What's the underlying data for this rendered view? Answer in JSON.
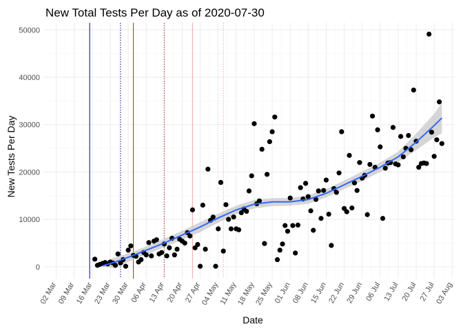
{
  "chart_data": {
    "type": "scatter",
    "title": "New Total Tests Per Day as of 2020-07-30",
    "xlabel": "Date",
    "ylabel": "New Tests Per Day",
    "year": 2020,
    "xlim": [
      "2020-02-26",
      "2020-08-04"
    ],
    "ylim": [
      -2500,
      51500
    ],
    "x_ticks": [
      "02 Mar",
      "09 Mar",
      "16 Mar",
      "23 Mar",
      "30 Mar",
      "06 Apr",
      "13 Apr",
      "20 Apr",
      "27 Apr",
      "04 May",
      "11 May",
      "18 May",
      "25 May",
      "01 Jun",
      "08 Jun",
      "15 Jun",
      "22 Jun",
      "29 Jun",
      "06 Jul",
      "13 Jul",
      "20 Jul",
      "27 Jul",
      "03 Aug"
    ],
    "y_ticks": [
      "0",
      "10000",
      "20000",
      "30000",
      "40000",
      "50000"
    ],
    "grid": true,
    "vlines": [
      {
        "date": "2020-03-15",
        "color": "#00008b",
        "style": "solid"
      },
      {
        "date": "2020-03-27",
        "color": "#00008b",
        "style": "dotted"
      },
      {
        "date": "2020-04-01",
        "color": "#b22222",
        "style": "solid"
      },
      {
        "date": "2020-04-13",
        "color": "#b22222",
        "style": "dotted"
      },
      {
        "date": "2020-04-24",
        "color": "#f4a6a6",
        "style": "solid"
      },
      {
        "date": "2020-05-06",
        "color": "#f4a6a6",
        "style": "dotted"
      }
    ],
    "points_color": "#000000",
    "smooth_color": "#3366ff",
    "ribbon_color": "#cccccc",
    "series": [
      {
        "values": [
          [
            "2020-03-17",
            1600
          ],
          [
            "2020-03-18",
            300
          ],
          [
            "2020-03-19",
            500
          ],
          [
            "2020-03-20",
            700
          ],
          [
            "2020-03-21",
            900
          ],
          [
            "2020-03-22",
            600
          ],
          [
            "2020-03-23",
            1000
          ],
          [
            "2020-03-24",
            800
          ],
          [
            "2020-03-25",
            300
          ],
          [
            "2020-03-26",
            2700
          ],
          [
            "2020-03-27",
            800
          ],
          [
            "2020-03-28",
            1500
          ],
          [
            "2020-03-29",
            100
          ],
          [
            "2020-03-30",
            3500
          ],
          [
            "2020-03-31",
            4400
          ],
          [
            "2020-04-01",
            2400
          ],
          [
            "2020-04-02",
            2200
          ],
          [
            "2020-04-03",
            1000
          ],
          [
            "2020-04-04",
            1500
          ],
          [
            "2020-04-05",
            3000
          ],
          [
            "2020-04-06",
            2500
          ],
          [
            "2020-04-07",
            5100
          ],
          [
            "2020-04-08",
            2300
          ],
          [
            "2020-04-09",
            5400
          ],
          [
            "2020-04-10",
            5700
          ],
          [
            "2020-04-11",
            2700
          ],
          [
            "2020-04-12",
            3000
          ],
          [
            "2020-04-13",
            4800
          ],
          [
            "2020-04-14",
            2300
          ],
          [
            "2020-04-15",
            4000
          ],
          [
            "2020-04-16",
            6000
          ],
          [
            "2020-04-17",
            2500
          ],
          [
            "2020-04-18",
            3700
          ],
          [
            "2020-04-19",
            5800
          ],
          [
            "2020-04-20",
            5400
          ],
          [
            "2020-04-21",
            5000
          ],
          [
            "2020-04-22",
            7200
          ],
          [
            "2020-04-23",
            6500
          ],
          [
            "2020-04-24",
            12000
          ],
          [
            "2020-04-25",
            4000
          ],
          [
            "2020-04-26",
            4700
          ],
          [
            "2020-04-27",
            100
          ],
          [
            "2020-04-28",
            13000
          ],
          [
            "2020-04-29",
            3700
          ],
          [
            "2020-04-30",
            20600
          ],
          [
            "2020-05-01",
            9800
          ],
          [
            "2020-05-02",
            10500
          ],
          [
            "2020-05-03",
            100
          ],
          [
            "2020-05-04",
            8000
          ],
          [
            "2020-05-05",
            17800
          ],
          [
            "2020-05-06",
            3300
          ],
          [
            "2020-05-07",
            13100
          ],
          [
            "2020-05-08",
            10000
          ],
          [
            "2020-05-09",
            8000
          ],
          [
            "2020-05-10",
            10500
          ],
          [
            "2020-05-11",
            8000
          ],
          [
            "2020-05-12",
            7800
          ],
          [
            "2020-05-13",
            11400
          ],
          [
            "2020-05-14",
            12200
          ],
          [
            "2020-05-15",
            11700
          ],
          [
            "2020-05-16",
            16000
          ],
          [
            "2020-05-17",
            19200
          ],
          [
            "2020-05-18",
            30200
          ],
          [
            "2020-05-19",
            13300
          ],
          [
            "2020-05-20",
            13900
          ],
          [
            "2020-05-21",
            24800
          ],
          [
            "2020-05-22",
            4900
          ],
          [
            "2020-05-23",
            19500
          ],
          [
            "2020-05-24",
            26400
          ],
          [
            "2020-05-25",
            28500
          ],
          [
            "2020-05-26",
            31600
          ],
          [
            "2020-05-27",
            1500
          ],
          [
            "2020-05-28",
            3500
          ],
          [
            "2020-05-29",
            4800
          ],
          [
            "2020-05-30",
            8700
          ],
          [
            "2020-05-31",
            7500
          ],
          [
            "2020-06-01",
            14500
          ],
          [
            "2020-06-02",
            8700
          ],
          [
            "2020-06-03",
            2900
          ],
          [
            "2020-06-04",
            8800
          ],
          [
            "2020-06-05",
            16700
          ],
          [
            "2020-06-06",
            14300
          ],
          [
            "2020-06-07",
            17600
          ],
          [
            "2020-06-08",
            14800
          ],
          [
            "2020-06-09",
            11800
          ],
          [
            "2020-06-10",
            7700
          ],
          [
            "2020-06-11",
            14200
          ],
          [
            "2020-06-12",
            16000
          ],
          [
            "2020-06-13",
            10200
          ],
          [
            "2020-06-14",
            16100
          ],
          [
            "2020-06-15",
            18300
          ],
          [
            "2020-06-16",
            11100
          ],
          [
            "2020-06-17",
            4500
          ],
          [
            "2020-06-18",
            16500
          ],
          [
            "2020-06-19",
            15700
          ],
          [
            "2020-06-20",
            19800
          ],
          [
            "2020-06-21",
            28500
          ],
          [
            "2020-06-22",
            12300
          ],
          [
            "2020-06-23",
            11600
          ],
          [
            "2020-06-24",
            23500
          ],
          [
            "2020-06-25",
            12400
          ],
          [
            "2020-06-26",
            17700
          ],
          [
            "2020-06-27",
            16100
          ],
          [
            "2020-06-28",
            22000
          ],
          [
            "2020-06-29",
            18700
          ],
          [
            "2020-06-30",
            19300
          ],
          [
            "2020-07-01",
            11000
          ],
          [
            "2020-07-02",
            21600
          ],
          [
            "2020-07-03",
            31800
          ],
          [
            "2020-07-04",
            21000
          ],
          [
            "2020-07-05",
            28900
          ],
          [
            "2020-07-06",
            25300
          ],
          [
            "2020-07-07",
            10200
          ],
          [
            "2020-07-08",
            20800
          ],
          [
            "2020-07-09",
            21900
          ],
          [
            "2020-07-10",
            22000
          ],
          [
            "2020-07-11",
            29400
          ],
          [
            "2020-07-12",
            21700
          ],
          [
            "2020-07-13",
            21500
          ],
          [
            "2020-07-14",
            27500
          ],
          [
            "2020-07-15",
            23200
          ],
          [
            "2020-07-16",
            25000
          ],
          [
            "2020-07-17",
            27700
          ],
          [
            "2020-07-18",
            24700
          ],
          [
            "2020-07-19",
            37300
          ],
          [
            "2020-07-20",
            26500
          ],
          [
            "2020-07-21",
            21000
          ],
          [
            "2020-07-22",
            21800
          ],
          [
            "2020-07-23",
            21900
          ],
          [
            "2020-07-24",
            21800
          ],
          [
            "2020-07-25",
            49100
          ],
          [
            "2020-07-26",
            28400
          ],
          [
            "2020-07-27",
            23300
          ],
          [
            "2020-07-28",
            26800
          ],
          [
            "2020-07-29",
            34800
          ],
          [
            "2020-07-30",
            26000
          ]
        ]
      }
    ],
    "smooth": [
      [
        "2020-03-20",
        200,
        0,
        1000
      ],
      [
        "2020-03-25",
        1000,
        -300,
        2000
      ],
      [
        "2020-03-31",
        2200,
        1300,
        3000
      ],
      [
        "2020-04-06",
        3500,
        2600,
        4300
      ],
      [
        "2020-04-13",
        5000,
        4100,
        5900
      ],
      [
        "2020-04-20",
        6700,
        5700,
        7600
      ],
      [
        "2020-04-27",
        8400,
        7300,
        9400
      ],
      [
        "2020-05-04",
        10300,
        9300,
        11200
      ],
      [
        "2020-05-11",
        12000,
        11100,
        12900
      ],
      [
        "2020-05-18",
        13200,
        12300,
        14100
      ],
      [
        "2020-05-25",
        13700,
        12800,
        14500
      ],
      [
        "2020-06-01",
        13700,
        12900,
        14500
      ],
      [
        "2020-06-08",
        14200,
        13300,
        15100
      ],
      [
        "2020-06-15",
        15500,
        14600,
        16400
      ],
      [
        "2020-06-22",
        17300,
        16400,
        18200
      ],
      [
        "2020-06-29",
        19100,
        18100,
        20100
      ],
      [
        "2020-07-06",
        21000,
        20000,
        22000
      ],
      [
        "2020-07-13",
        23200,
        22100,
        24300
      ],
      [
        "2020-07-20",
        26300,
        24600,
        28100
      ],
      [
        "2020-07-27",
        29800,
        27300,
        32300
      ],
      [
        "2020-07-30",
        31400,
        28200,
        34600
      ]
    ]
  }
}
